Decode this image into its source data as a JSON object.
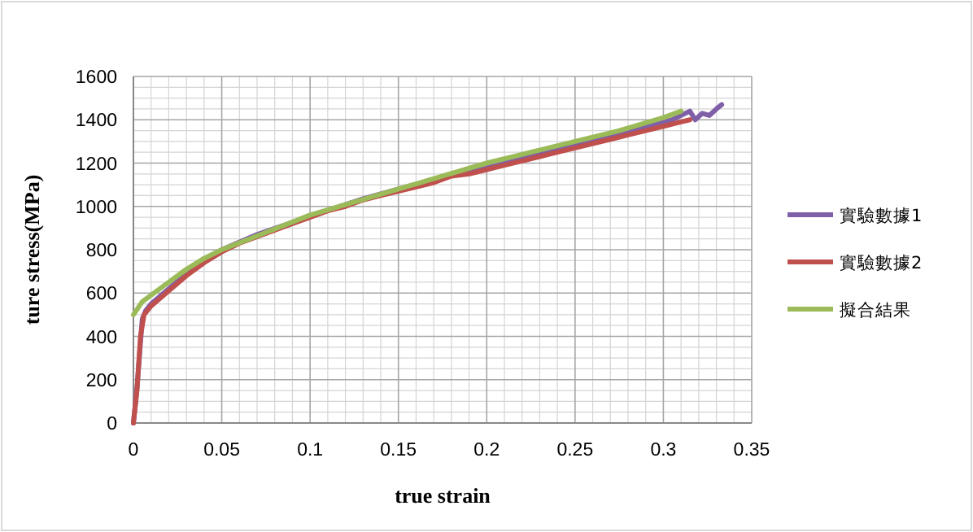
{
  "chart_data": {
    "type": "line",
    "xlabel": "true strain",
    "ylabel": "ture stress(MPa)",
    "xlim": [
      0,
      0.35
    ],
    "xticks": [
      0,
      0.05,
      0.1,
      0.15,
      0.2,
      0.25,
      0.3,
      0.35
    ],
    "ylim": [
      0,
      1600
    ],
    "yticks": [
      0,
      200,
      400,
      600,
      800,
      1000,
      1200,
      1400,
      1600
    ],
    "grid": true,
    "legend": "right",
    "series": [
      {
        "name": "實驗數據1",
        "color": "#7f5fa8",
        "x": [
          0,
          0.002,
          0.005,
          0.007,
          0.01,
          0.02,
          0.03,
          0.04,
          0.05,
          0.07,
          0.1,
          0.13,
          0.15,
          0.18,
          0.2,
          0.23,
          0.25,
          0.28,
          0.3,
          0.305,
          0.31,
          0.315,
          0.318,
          0.322,
          0.326,
          0.33,
          0.333
        ],
        "values": [
          0,
          160,
          480,
          520,
          550,
          620,
          690,
          750,
          800,
          870,
          955,
          1035,
          1080,
          1145,
          1185,
          1245,
          1285,
          1345,
          1390,
          1400,
          1420,
          1440,
          1400,
          1430,
          1420,
          1450,
          1470
        ]
      },
      {
        "name": "實驗數據2",
        "color": "#c0504d",
        "x": [
          0,
          0.002,
          0.004,
          0.006,
          0.01,
          0.02,
          0.03,
          0.04,
          0.05,
          0.06,
          0.07,
          0.08,
          0.09,
          0.1,
          0.11,
          0.12,
          0.13,
          0.14,
          0.15,
          0.16,
          0.17,
          0.18,
          0.19,
          0.2,
          0.21,
          0.22,
          0.23,
          0.24,
          0.25,
          0.26,
          0.27,
          0.28,
          0.29,
          0.3,
          0.31,
          0.315
        ],
        "values": [
          0,
          150,
          400,
          500,
          540,
          610,
          680,
          740,
          790,
          830,
          860,
          890,
          920,
          950,
          980,
          1000,
          1030,
          1050,
          1070,
          1090,
          1110,
          1140,
          1150,
          1170,
          1190,
          1210,
          1230,
          1250,
          1270,
          1290,
          1310,
          1330,
          1350,
          1370,
          1390,
          1400
        ]
      },
      {
        "name": "擬合結果",
        "color": "#9bbb59",
        "x": [
          0,
          0.005,
          0.01,
          0.02,
          0.03,
          0.04,
          0.05,
          0.075,
          0.1,
          0.125,
          0.15,
          0.175,
          0.2,
          0.225,
          0.25,
          0.275,
          0.3,
          0.31
        ],
        "values": [
          500,
          560,
          590,
          650,
          710,
          760,
          800,
          880,
          960,
          1020,
          1080,
          1140,
          1200,
          1250,
          1300,
          1350,
          1410,
          1440
        ]
      }
    ]
  }
}
